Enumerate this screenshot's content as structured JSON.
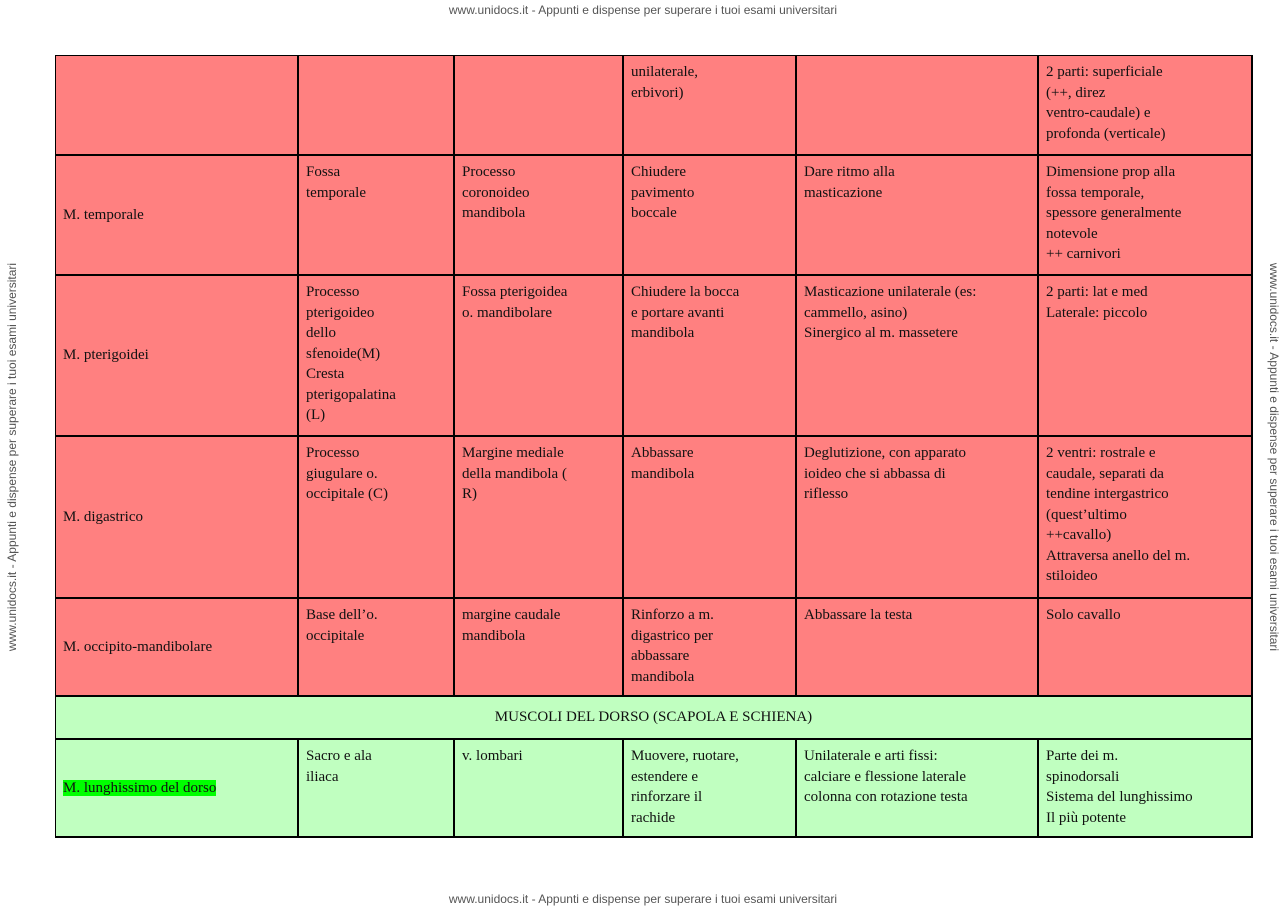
{
  "header": {
    "watermark": "www.unidocs.it - Appunti e dispense per superare i tuoi esami universitari"
  },
  "footer": {
    "watermark": "www.unidocs.it - Appunti e dispense per superare i tuoi esami universitari"
  },
  "side": {
    "left": "www.unidocs.it - Appunti e dispense per superare i tuoi esami universitari",
    "right": "www.unidocs.it - Appunti e dispense per superare i tuoi esami universitari"
  },
  "table": {
    "rows": [
      {
        "color": "#ff8080",
        "cells": [
          [],
          [],
          [],
          [
            "unilaterale,",
            "erbivori)"
          ],
          [],
          [
            "2 parti: superficiale",
            "(++, direz",
            "ventro-caudale) e",
            "profonda (verticale)"
          ]
        ]
      },
      {
        "color": "#ff8080",
        "cells": [
          [
            "M. temporale"
          ],
          [
            "Fossa",
            "temporale"
          ],
          [
            "Processo",
            "coronoideo",
            "mandibola"
          ],
          [
            "Chiudere",
            "pavimento",
            "boccale"
          ],
          [
            "Dare ritmo alla",
            "masticazione"
          ],
          [
            "Dimensione prop alla",
            "fossa temporale,",
            "spessore generalmente",
            "notevole",
            "++ carnivori"
          ]
        ]
      },
      {
        "color": "#ff8080",
        "cells": [
          [
            "M. pterigoidei"
          ],
          [
            "Processo",
            "pterigoideo",
            "dello",
            "sfenoide(M)",
            "Cresta",
            "pterigopalatina",
            "(L)"
          ],
          [
            "Fossa pterigoidea",
            "o. mandibolare"
          ],
          [
            "Chiudere la bocca",
            "e portare avanti",
            "mandibola"
          ],
          [
            "Masticazione unilaterale (es:",
            "cammello, asino)",
            "Sinergico al m. massetere"
          ],
          [
            "2 parti: lat e med",
            "Laterale: piccolo"
          ]
        ]
      },
      {
        "color": "#ff8080",
        "cells": [
          [
            "M. digastrico"
          ],
          [
            "Processo",
            "giugulare o.",
            "occipitale (C)"
          ],
          [
            "Margine mediale",
            "della mandibola (",
            "R)"
          ],
          [
            "Abbassare",
            "mandibola"
          ],
          [
            "Deglutizione, con apparato",
            "ioideo che si abbassa di",
            "riflesso"
          ],
          [
            "2 ventri: rostrale e",
            "caudale, separati da",
            "tendine intergastrico",
            "(quest’ultimo",
            "++cavallo)",
            "Attraversa anello del m.",
            "stiloideo"
          ]
        ]
      },
      {
        "color": "#ff8080",
        "cells": [
          [
            "M. occipito-mandibolare"
          ],
          [
            "Base dell’o.",
            "occipitale"
          ],
          [
            "margine caudale",
            "mandibola"
          ],
          [
            "Rinforzo a m.",
            "digastrico per",
            "abbassare",
            "mandibola"
          ],
          [
            "Abbassare la testa"
          ],
          [
            "Solo cavallo"
          ]
        ]
      },
      {
        "color": "#c0ffc0",
        "section": "MUSCOLI DEL DORSO (SCAPOLA E SCHIENA)"
      },
      {
        "color": "#c0ffc0",
        "highlight": "#00ff00",
        "cells": [
          [
            "M. lunghissimo del dorso"
          ],
          [
            "Sacro e ala",
            "iliaca"
          ],
          [
            "v. lombari"
          ],
          [
            "Muovere, ruotare,",
            "estendere e",
            "rinforzare il",
            "rachide"
          ],
          [
            "Unilaterale e arti fissi:",
            "calciare e flessione laterale",
            "colonna con rotazione testa"
          ],
          [
            "Parte dei m.",
            "spinodorsali",
            "Sistema del lunghissimo",
            "Il più potente"
          ]
        ]
      }
    ]
  }
}
